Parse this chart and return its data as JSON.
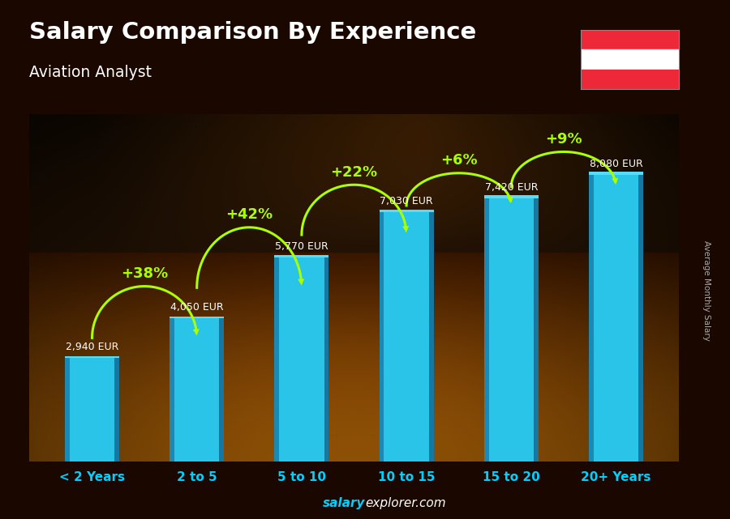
{
  "title": "Salary Comparison By Experience",
  "subtitle": "Aviation Analyst",
  "categories": [
    "< 2 Years",
    "2 to 5",
    "5 to 10",
    "10 to 15",
    "15 to 20",
    "20+ Years"
  ],
  "values": [
    2940,
    4050,
    5770,
    7030,
    7420,
    8080
  ],
  "value_labels": [
    "2,940 EUR",
    "4,050 EUR",
    "5,770 EUR",
    "7,030 EUR",
    "7,420 EUR",
    "8,080 EUR"
  ],
  "pct_labels": [
    "+38%",
    "+42%",
    "+22%",
    "+6%",
    "+9%"
  ],
  "bar_color_main": "#29c4e8",
  "bar_color_left": "#1a8ab5",
  "bar_color_right": "#1678a0",
  "bar_color_top": "#55ddf8",
  "pct_color": "#aaff00",
  "title_color": "#ffffff",
  "subtitle_color": "#ffffff",
  "value_label_color": "#ffffff",
  "xlabel_color": "#00cfff",
  "ylabel_text": "Average Monthly Salary",
  "ylabel_color": "#aaaaaa",
  "footer_salary_color": "#00cfff",
  "footer_explorer_color": "#ffffff",
  "flag_red": "#ed2939",
  "ylim": [
    0,
    9800
  ],
  "bar_width": 0.52,
  "figsize": [
    9.0,
    6.41
  ],
  "dpi": 100
}
